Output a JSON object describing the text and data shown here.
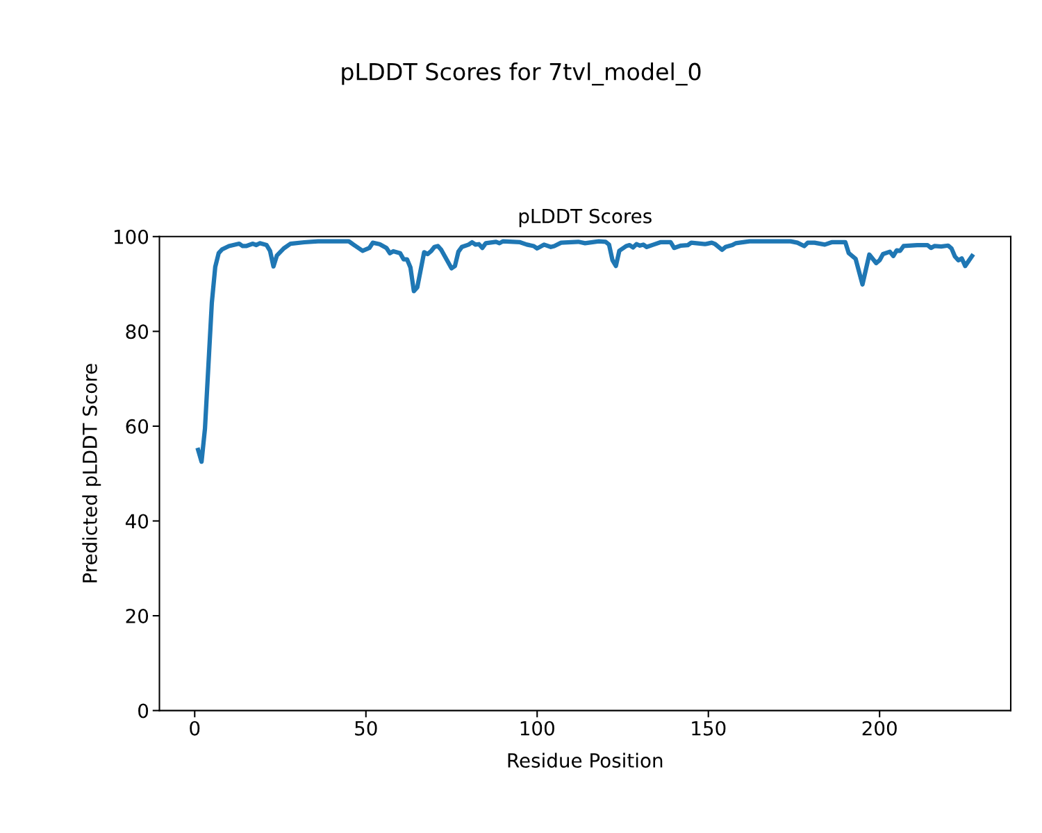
{
  "chart_data": {
    "type": "line",
    "title": "pLDDT Scores",
    "subtitle": "pLDDT Scores for 7tvl_model_0",
    "xlabel": "Residue Position",
    "ylabel": "Predicted pLDDT Score",
    "xlim": [
      -10.3,
      238.3
    ],
    "xticks": [
      0,
      50,
      100,
      150,
      200
    ],
    "ylim": [
      0,
      100
    ],
    "yticks": [
      0,
      20,
      40,
      60,
      80,
      100
    ],
    "grid": false,
    "legend": false,
    "series": [
      {
        "color": "#1f77b4",
        "x": [
          1,
          2,
          3,
          5,
          6,
          7,
          8,
          10,
          13,
          14,
          15,
          17,
          18,
          19,
          21,
          22,
          23,
          24,
          26,
          28,
          32,
          36,
          45,
          47,
          49,
          51,
          52,
          54,
          56,
          57,
          58,
          60,
          61,
          62,
          63,
          64,
          65,
          67,
          68,
          69,
          70,
          71,
          72,
          75,
          76,
          77,
          78,
          80,
          81,
          82,
          83,
          84,
          85,
          88,
          89,
          90,
          95,
          97,
          99,
          100,
          102,
          104,
          105,
          107,
          112,
          114,
          118,
          120,
          121,
          122,
          123,
          124,
          126,
          127,
          128,
          129,
          130,
          131,
          132,
          134,
          136,
          139,
          140,
          142,
          144,
          145,
          149,
          151,
          152,
          154,
          155,
          157,
          158,
          162,
          170,
          174,
          176,
          178,
          179,
          181,
          184,
          186,
          190,
          191,
          193,
          195,
          197,
          199,
          200,
          201,
          203,
          204,
          205,
          206,
          207,
          211,
          214,
          215,
          216,
          218,
          220,
          221,
          222,
          223,
          224,
          225,
          227
        ],
        "values": [
          55,
          52.5,
          59.5,
          86,
          93.6,
          96.5,
          97.3,
          98,
          98.5,
          98,
          98,
          98.5,
          98.2,
          98.6,
          98.2,
          97,
          93.7,
          96,
          97.5,
          98.5,
          98.8,
          99,
          99,
          98,
          97,
          97.6,
          98.7,
          98.4,
          97.6,
          96.5,
          96.9,
          96.5,
          95.2,
          95.2,
          93.5,
          88.5,
          89.3,
          96.7,
          96.3,
          96.9,
          97.8,
          98,
          97.2,
          93.3,
          93.8,
          96.8,
          97.8,
          98.3,
          98.8,
          98.3,
          98.4,
          97.6,
          98.6,
          98.9,
          98.6,
          99,
          98.8,
          98.3,
          98,
          97.5,
          98.3,
          97.8,
          98,
          98.7,
          98.9,
          98.6,
          99,
          98.9,
          98.3,
          95,
          93.8,
          97,
          98,
          98.2,
          97.7,
          98.4,
          98.1,
          98.3,
          97.8,
          98.3,
          98.8,
          98.8,
          97.6,
          98.1,
          98.2,
          98.7,
          98.4,
          98.7,
          98.4,
          97.2,
          97.8,
          98.2,
          98.6,
          99,
          99,
          99,
          98.7,
          98,
          98.7,
          98.7,
          98.3,
          98.8,
          98.8,
          96.5,
          95.3,
          89.9,
          96.2,
          94.4,
          95,
          96.3,
          96.8,
          95.9,
          97.1,
          97,
          98,
          98.2,
          98.2,
          97.6,
          98,
          97.9,
          98.1,
          97.5,
          95.8,
          95,
          95.4,
          93.8,
          95.9
        ]
      }
    ]
  }
}
